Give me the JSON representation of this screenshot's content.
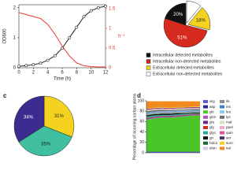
{
  "chart_data": [
    {
      "type": "line",
      "xlabel": "Time (h)",
      "ylabel": "OD600",
      "y2label": "h⁻¹",
      "x": [
        0,
        1,
        2,
        3,
        4,
        5,
        6,
        7,
        8,
        9,
        10,
        11,
        12
      ],
      "xlim": [
        0,
        12
      ],
      "xticks": [
        0,
        2,
        4,
        6,
        8,
        10,
        12
      ],
      "ylim": [
        0,
        2.1
      ],
      "yticks": [
        0,
        1,
        2
      ],
      "y2lim": [
        0,
        1.6
      ],
      "y2ticks": [
        0,
        0.5,
        1,
        1.5
      ],
      "series": [
        {
          "color": "#222222",
          "markers": true,
          "values": [
            0.05,
            0.07,
            0.1,
            0.15,
            0.25,
            0.4,
            0.65,
            1.0,
            1.35,
            1.7,
            1.9,
            2.0,
            2.05
          ]
        },
        {
          "color": "#e8392f",
          "axis": "y2",
          "values": [
            1.4,
            1.35,
            1.3,
            1.25,
            1.1,
            0.85,
            0.55,
            0.3,
            0.12,
            0.05,
            0.03,
            0.02,
            0.02
          ]
        }
      ]
    },
    {
      "type": "pie",
      "categories": [
        "Extracellular non-detected metabolites",
        "Extracellular detected metabolites",
        "Intracellular non-detected metabolites",
        "Intracellular detected metabolites"
      ],
      "values": [
        11,
        18,
        51,
        20
      ],
      "value_labels": [
        null,
        "18%",
        "51%",
        "20%"
      ],
      "colors": [
        "#ffffff",
        "#f5d21f",
        "#d62a1e",
        "#111111"
      ],
      "explode": [
        true,
        true,
        false,
        false
      ],
      "legend_order": [
        3,
        2,
        1,
        0
      ]
    },
    {
      "type": "pie",
      "panel": "c",
      "values": [
        31,
        35,
        34
      ],
      "value_labels": [
        "31%",
        "35%",
        "34%"
      ],
      "colors": [
        "#f5d21f",
        "#3fbfa0",
        "#3d2b8f"
      ],
      "explode": [
        false,
        false,
        false
      ]
    },
    {
      "type": "area",
      "panel": "d",
      "ylabel": "Percentage of incoming carbon atoms",
      "categories": [
        null,
        null,
        null,
        null,
        null,
        null,
        null,
        null
      ],
      "ylim": [
        0,
        100
      ],
      "yticks": [
        0,
        20,
        40,
        60,
        80,
        100
      ],
      "series": [
        {
          "name": "arg",
          "color": "#5b5bd6",
          "values": [
            1,
            1,
            1,
            1,
            1,
            1,
            1,
            1
          ]
        },
        {
          "name": "asp",
          "color": "#1f2f8f",
          "values": [
            1,
            1,
            1,
            1,
            1,
            1,
            1,
            1
          ]
        },
        {
          "name": "glc",
          "color": "#4bc62a",
          "values": [
            62,
            64,
            66,
            66,
            67,
            68,
            70,
            70
          ]
        },
        {
          "name": "glcn",
          "color": "#b04fc0",
          "values": [
            1,
            1,
            1,
            1,
            1,
            1,
            1,
            1
          ]
        },
        {
          "name": "glu",
          "color": "#6a2a8a",
          "values": [
            1,
            1,
            1,
            1,
            1,
            1,
            1,
            1
          ]
        },
        {
          "name": "gly",
          "color": "#c8302a",
          "values": [
            1,
            1,
            1,
            1,
            1,
            1,
            1,
            1
          ]
        },
        {
          "name": "glyc",
          "color": "#2aa59a",
          "values": [
            3,
            3,
            2,
            2,
            2,
            2,
            1,
            1
          ]
        },
        {
          "name": "gn",
          "color": "#111111",
          "values": [
            2,
            2,
            2,
            2,
            2,
            1,
            1,
            1
          ]
        },
        {
          "name": "hdca",
          "color": "#1d6b2a",
          "values": [
            1,
            1,
            1,
            1,
            1,
            1,
            1,
            1
          ]
        },
        {
          "name": "idon",
          "color": "#d9c9ef",
          "values": [
            1,
            1,
            1,
            1,
            1,
            1,
            1,
            1
          ]
        },
        {
          "name": "ile",
          "color": "#8a8a8a",
          "values": [
            1,
            1,
            1,
            1,
            1,
            1,
            1,
            1
          ]
        },
        {
          "name": "ins",
          "color": "#3b7fd1",
          "values": [
            1,
            1,
            1,
            1,
            1,
            1,
            1,
            1
          ]
        },
        {
          "name": "leu",
          "color": "#8ec9e8",
          "values": [
            1,
            1,
            1,
            1,
            1,
            1,
            1,
            1
          ]
        },
        {
          "name": "lys",
          "color": "#6f6f6f",
          "values": [
            3,
            3,
            3,
            2,
            2,
            2,
            2,
            2
          ]
        },
        {
          "name": "mal",
          "color": "#c9e6b8",
          "values": [
            1,
            1,
            1,
            1,
            1,
            1,
            1,
            1
          ]
        },
        {
          "name": "ppel",
          "color": "#f2a9c8",
          "values": [
            1,
            1,
            1,
            1,
            1,
            1,
            1,
            1
          ]
        },
        {
          "name": "quin",
          "color": "#e04f9a",
          "values": [
            1,
            1,
            1,
            1,
            1,
            1,
            1,
            1
          ]
        },
        {
          "name": "ser",
          "color": "#4a2f6b",
          "values": [
            1,
            1,
            1,
            1,
            1,
            1,
            1,
            1
          ]
        },
        {
          "name": "succ",
          "color": "#f5d21f",
          "values": [
            1,
            1,
            1,
            1,
            1,
            1,
            1,
            1
          ]
        },
        {
          "name": "val",
          "color": "#f28a1e",
          "values": [
            14,
            12,
            11,
            12,
            11,
            11,
            10,
            10
          ]
        }
      ]
    }
  ]
}
